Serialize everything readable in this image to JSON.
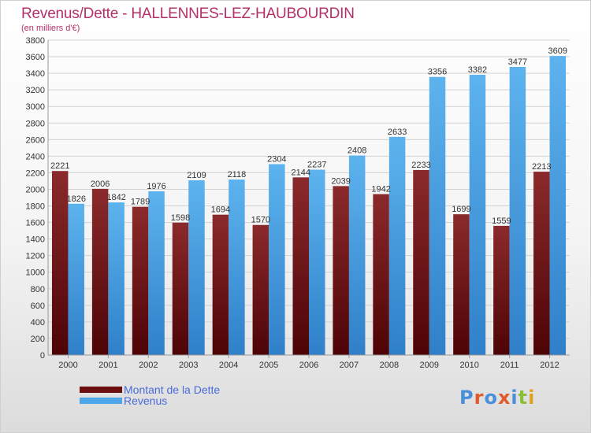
{
  "header": {
    "title": "Revenus/Dette - HALLENNES-LEZ-HAUBOURDIN",
    "subtitle": "(en milliers d'€)"
  },
  "legend": {
    "items": [
      {
        "label": "Montant de la Dette",
        "color": "#6b0f10"
      },
      {
        "label": "Revenus",
        "color": "#4da6e8"
      }
    ]
  },
  "logo": {
    "text": "Proxiti",
    "letter_colors": [
      "#4a90d9",
      "#e05a2b",
      "#4a90d9",
      "#e05a2b",
      "#4a90d9",
      "#8bbf3a",
      "#e0a020"
    ]
  },
  "chart_data": {
    "type": "bar",
    "title": "Revenus/Dette - HALLENNES-LEZ-HAUBOURDIN",
    "subtitle": "(en milliers d'€)",
    "categories": [
      "2000",
      "2001",
      "2002",
      "2003",
      "2004",
      "2005",
      "2006",
      "2007",
      "2008",
      "2009",
      "2010",
      "2011",
      "2012"
    ],
    "series": [
      {
        "name": "Montant de la Dette",
        "color": "#6b0f10",
        "values": [
          2221,
          2006,
          1789,
          1598,
          1694,
          1570,
          2144,
          2039,
          1942,
          2233,
          1699,
          1559,
          2213
        ],
        "labels": [
          "2221",
          "2006",
          "1789",
          "1598",
          "1694",
          "1570",
          "2144",
          "2039",
          "1942",
          "2233",
          "1699",
          "1559",
          "2213"
        ]
      },
      {
        "name": "Revenus",
        "color": "#4da6e8",
        "values": [
          1826,
          1842,
          1976,
          2109,
          2118,
          2304,
          2237,
          2408,
          2633,
          3356,
          3382,
          3477,
          3609
        ],
        "labels": [
          "1826",
          "1842",
          "1976",
          "2109",
          "2118",
          "2304",
          "2237",
          "2408",
          "2633",
          "3356",
          "3382",
          "3477",
          "3609"
        ]
      }
    ],
    "yticks": [
      0,
      200,
      400,
      600,
      800,
      1000,
      1200,
      1400,
      1600,
      1800,
      2000,
      2200,
      2400,
      2600,
      2800,
      3000,
      3200,
      3400,
      3600,
      3800
    ],
    "ylim": [
      0,
      3800
    ],
    "grid": true,
    "legend_position": "bottom-left"
  }
}
